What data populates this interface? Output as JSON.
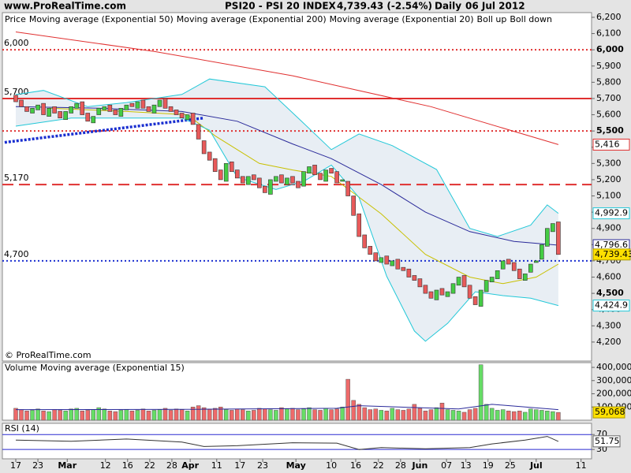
{
  "header": {
    "site": "www.ProRealTime.com",
    "symbol": "PSI20 - PSI 20 INDEX",
    "quote": "4,739.43 (-2.54%)",
    "period": "Daily",
    "date": "06 Jul 2012"
  },
  "chart_data": [
    {
      "type": "candlestick",
      "name": "Price",
      "up_color": "#44cc44",
      "down_color": "#e85a5a",
      "open": [
        5720,
        5690,
        5650,
        5610,
        5630,
        5670,
        5590,
        5650,
        5620,
        5570,
        5610,
        5640,
        5680,
        5610,
        5550,
        5600,
        5630,
        5660,
        5630,
        5590,
        5630,
        5670,
        5640,
        5690,
        5650,
        5610,
        5650,
        5700,
        5650,
        5630,
        5610,
        5570,
        5610,
        5540,
        5440,
        5370,
        5330,
        5260,
        5190,
        5310,
        5260,
        5220,
        5170,
        5230,
        5210,
        5160,
        5110,
        5190,
        5230,
        5170,
        5220,
        5190,
        5160,
        5240,
        5290,
        5240,
        5190,
        5270,
        5250,
        5190,
        5190,
        5100,
        4990,
        4860,
        4790,
        4750,
        4690,
        4730,
        4670,
        4710,
        4660,
        4650,
        4610,
        4590,
        4550,
        4510,
        4460,
        4530,
        4480,
        4500,
        4550,
        4610,
        4550,
        4480,
        4420,
        4510,
        4570,
        4590,
        4650,
        4710,
        4690,
        4650,
        4580,
        4630,
        4690,
        4710,
        4790,
        4880,
        4940
      ],
      "close": [
        5680,
        5650,
        5620,
        5640,
        5660,
        5600,
        5640,
        5610,
        5580,
        5620,
        5650,
        5670,
        5600,
        5560,
        5590,
        5640,
        5650,
        5620,
        5600,
        5640,
        5660,
        5650,
        5680,
        5640,
        5620,
        5660,
        5690,
        5640,
        5620,
        5600,
        5580,
        5600,
        5540,
        5450,
        5360,
        5320,
        5250,
        5200,
        5300,
        5250,
        5210,
        5180,
        5220,
        5200,
        5150,
        5120,
        5200,
        5220,
        5180,
        5210,
        5180,
        5150,
        5250,
        5280,
        5230,
        5200,
        5260,
        5240,
        5180,
        5200,
        5100,
        4980,
        4850,
        4780,
        4740,
        4700,
        4720,
        4680,
        4700,
        4650,
        4640,
        4600,
        4580,
        4540,
        4500,
        4470,
        4520,
        4490,
        4510,
        4560,
        4600,
        4540,
        4470,
        4430,
        4520,
        4580,
        4600,
        4640,
        4700,
        4680,
        4640,
        4590,
        4620,
        4680,
        4700,
        4800,
        4900,
        4930,
        4739.43
      ],
      "value_label": "4,739.43",
      "lines": [
        {
          "name": "Moving average (Exponential 50)",
          "color": "#2a2a9a",
          "x": [
            0,
            15,
            30,
            40,
            50,
            57,
            66,
            74,
            82,
            90,
            98
          ],
          "values": [
            5650,
            5640,
            5620,
            5560,
            5420,
            5330,
            5170,
            5000,
            4880,
            4820,
            4796.6
          ],
          "value_label": "4,796.6"
        },
        {
          "name": "Moving average (Exponential 200)",
          "color": "#e03030",
          "x": [
            0,
            25,
            50,
            75,
            98
          ],
          "values": [
            6110,
            5990,
            5840,
            5650,
            5416
          ],
          "value_label": "5,416"
        },
        {
          "name": "Moving average (Exponential 20)",
          "color": "#c8c000",
          "x": [
            6,
            20,
            31,
            36,
            44,
            50,
            57,
            66,
            74,
            82,
            88,
            94,
            98
          ],
          "values": [
            5640,
            5620,
            5600,
            5470,
            5300,
            5260,
            5220,
            4990,
            4740,
            4600,
            4560,
            4600,
            4680
          ]
        },
        {
          "name": "Boll up",
          "color": "#22c8d8",
          "x": [
            0,
            5,
            13,
            20,
            30,
            35,
            45,
            51,
            57,
            62,
            68,
            76,
            82,
            87,
            93,
            96,
            98
          ],
          "values": [
            5724,
            5750,
            5650,
            5675,
            5725,
            5820,
            5772,
            5580,
            5385,
            5482,
            5410,
            5263,
            4900,
            4850,
            4920,
            5045,
            4992.9
          ],
          "value_label": "4,992.9"
        },
        {
          "name": "Boll down",
          "color": "#22c8d8",
          "x": [
            0,
            10,
            20,
            30,
            35,
            40,
            47,
            52,
            57,
            62,
            67,
            72,
            74,
            78,
            83,
            88,
            93,
            98
          ],
          "values": [
            5530,
            5580,
            5580,
            5580,
            5505,
            5215,
            5140,
            5190,
            5290,
            5090,
            4605,
            4268,
            4205,
            4315,
            4510,
            4486,
            4470,
            4424.9
          ],
          "value_label": "4,424.9"
        }
      ],
      "levels": [
        {
          "value": 6000,
          "label": "6,000",
          "color": "#e03030",
          "style": "dotted"
        },
        {
          "value": 5700,
          "label": "5,700",
          "color": "#e03030",
          "style": "solid"
        },
        {
          "value": 5500,
          "color": "#e03030",
          "style": "dotted"
        },
        {
          "value": 5170,
          "label": "5,170",
          "color": "#e03030",
          "style": "dashed"
        },
        {
          "value": 4700,
          "label": "4,700",
          "color": "#1a2fd0",
          "style": "dotted"
        }
      ],
      "trendline": {
        "color": "#1a2fd0",
        "x": [
          -2,
          34
        ],
        "values": [
          5430,
          5580
        ]
      },
      "copyright": "© ProRealTime.com",
      "xlim": [
        -2.42,
        104
      ],
      "ylim": [
        4083,
        6229
      ],
      "yticks": [
        {
          "value": 4200,
          "label": "4,200"
        },
        {
          "value": 4300,
          "label": "4,300"
        },
        {
          "value": 4400,
          "label": "4,400"
        },
        {
          "value": 4500,
          "label": "4,500"
        },
        {
          "value": 4600,
          "label": "4,600"
        },
        {
          "value": 4700,
          "label": "4,700"
        },
        {
          "value": 4800,
          "label": "4,800"
        },
        {
          "value": 4900,
          "label": "4,900"
        },
        {
          "value": 5000,
          "label": "5,000"
        },
        {
          "value": 5100,
          "label": "5,100"
        },
        {
          "value": 5200,
          "label": "5,200"
        },
        {
          "value": 5300,
          "label": "5,300"
        },
        {
          "value": 5400,
          "label": "5,400"
        },
        {
          "value": 5500,
          "label": "5,500"
        },
        {
          "value": 5600,
          "label": "5,600"
        },
        {
          "value": 5700,
          "label": "5,700"
        },
        {
          "value": 5800,
          "label": "5,800"
        },
        {
          "value": 5900,
          "label": "5,900"
        },
        {
          "value": 6000,
          "label": "6,000"
        },
        {
          "value": 6100,
          "label": "6,100"
        },
        {
          "value": 6200,
          "label": "6,200"
        }
      ],
      "xticks": [
        {
          "value": 0,
          "label": "17"
        },
        {
          "value": 4,
          "label": "23"
        },
        {
          "value": 9.3,
          "label": "Mar"
        },
        {
          "value": 16.2,
          "label": "12"
        },
        {
          "value": 20.2,
          "label": "16"
        },
        {
          "value": 24.2,
          "label": "22"
        },
        {
          "value": 28.2,
          "label": "28"
        },
        {
          "value": 31.5,
          "label": "Apr"
        },
        {
          "value": 36.3,
          "label": "11"
        },
        {
          "value": 40.5,
          "label": "17"
        },
        {
          "value": 44.6,
          "label": "23"
        },
        {
          "value": 50.6,
          "label": "May"
        },
        {
          "value": 57,
          "label": "10"
        },
        {
          "value": 61.4,
          "label": "16"
        },
        {
          "value": 65.5,
          "label": "22"
        },
        {
          "value": 69.5,
          "label": "28"
        },
        {
          "value": 73,
          "label": "Jun"
        },
        {
          "value": 77.8,
          "label": "07"
        },
        {
          "value": 81.3,
          "label": "13"
        },
        {
          "value": 85.3,
          "label": "19"
        },
        {
          "value": 89.3,
          "label": "25"
        },
        {
          "value": 94,
          "label": "Jul"
        },
        {
          "value": 102.1,
          "label": "11"
        }
      ]
    },
    {
      "type": "volume",
      "title": "Volume",
      "color": "#e03030",
      "values": [
        90000,
        80000,
        70000,
        75000,
        85000,
        70000,
        65000,
        80000,
        75000,
        70000,
        85000,
        90000,
        70000,
        75000,
        80000,
        95000,
        85000,
        70000,
        65000,
        75000,
        80000,
        70000,
        75000,
        85000,
        70000,
        75000,
        80000,
        90000,
        75000,
        85000,
        80000,
        70000,
        100000,
        110000,
        95000,
        85000,
        90000,
        100000,
        80000,
        75000,
        85000,
        80000,
        70000,
        75000,
        90000,
        85000,
        80000,
        75000,
        95000,
        85000,
        90000,
        80000,
        85000,
        95000,
        80000,
        75000,
        90000,
        80000,
        85000,
        100000,
        310000,
        150000,
        120000,
        95000,
        80000,
        85000,
        75000,
        70000,
        90000,
        80000,
        75000,
        85000,
        120000,
        90000,
        70000,
        80000,
        95000,
        130000,
        80000,
        75000,
        70000,
        60000,
        80000,
        90000,
        420000,
        120000,
        90000,
        75000,
        80000,
        70000,
        65000,
        70000,
        60000,
        85000,
        80000,
        75000,
        70000,
        65000,
        59068
      ],
      "value_label": "59,068",
      "lines": [
        {
          "name": "Moving average (Exponential 15)",
          "color": "#2a2a9a",
          "x": [
            0,
            30,
            58,
            62,
            80,
            86,
            98
          ],
          "values": [
            80000,
            82000,
            90000,
            110000,
            85000,
            120000,
            80000
          ]
        }
      ],
      "ylim": [
        0,
        436000
      ],
      "yticks": [
        {
          "value": 100000,
          "label": "100,000"
        },
        {
          "value": 200000,
          "label": "200,000"
        },
        {
          "value": 300000,
          "label": "300,000"
        },
        {
          "value": 400000,
          "label": "400,000"
        }
      ]
    },
    {
      "type": "rsi",
      "title": "RSI (14)",
      "color": "#333333",
      "grid_color": "#2a2ad0",
      "x": [
        0,
        10,
        20,
        30,
        34,
        40,
        50,
        58,
        62,
        66,
        74,
        82,
        86,
        92,
        96,
        98
      ],
      "values": [
        55,
        52,
        58,
        50,
        38,
        40,
        48,
        47,
        30,
        35,
        32,
        35,
        45,
        55,
        65,
        51.75
      ],
      "ylim": [
        5,
        100
      ],
      "yticks": [
        30,
        70
      ]
    }
  ]
}
